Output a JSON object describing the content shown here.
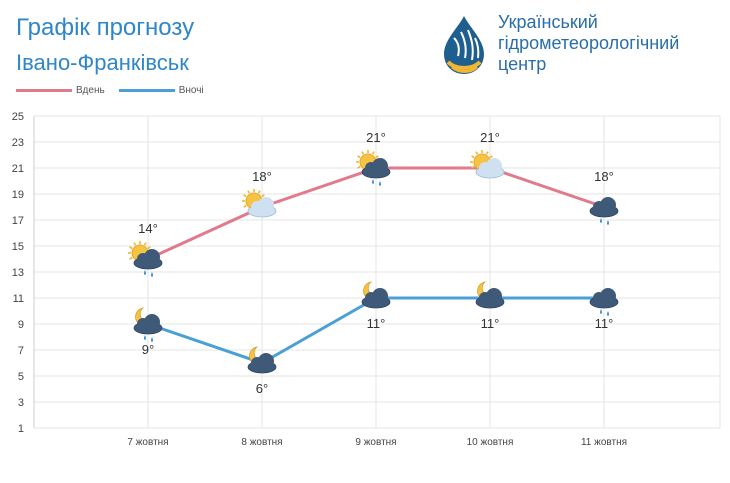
{
  "header": {
    "title": "Графік прогнозу",
    "city": "Івано-Франківськ",
    "org_line1": "Український",
    "org_line2": "гідрометеорологічний",
    "org_line3": "центр"
  },
  "colors": {
    "day": "#e07a8c",
    "night": "#4aa0d6",
    "title": "#2f86c8",
    "grid": "#e4e4e4"
  },
  "chart_data": {
    "type": "line",
    "categories": [
      "7 жовтня",
      "8 жовтня",
      "9 жовтня",
      "10 жовтня",
      "11 жовтня"
    ],
    "series": [
      {
        "name": "Вдень",
        "values": [
          14,
          18,
          21,
          21,
          18
        ],
        "labels": [
          "14°",
          "18°",
          "21°",
          "21°",
          "18°"
        ],
        "icons": [
          "sun-cloud-rain-icon",
          "sun-cloud-icon",
          "sun-cloud-rain-icon",
          "sun-cloud-icon",
          "cloud-rain-icon"
        ]
      },
      {
        "name": "Вночі",
        "values": [
          9,
          6,
          11,
          11,
          11
        ],
        "labels": [
          "9°",
          "6°",
          "11°",
          "11°",
          "11°"
        ],
        "icons": [
          "moon-cloud-rain-icon",
          "moon-cloud-icon",
          "moon-cloud-icon",
          "moon-cloud-icon",
          "cloud-rain-icon"
        ]
      }
    ],
    "yticks": [
      1,
      3,
      5,
      7,
      9,
      11,
      13,
      15,
      17,
      19,
      21,
      23,
      25
    ],
    "ylim": [
      1,
      25
    ],
    "grid": true,
    "legend": "top-left"
  }
}
